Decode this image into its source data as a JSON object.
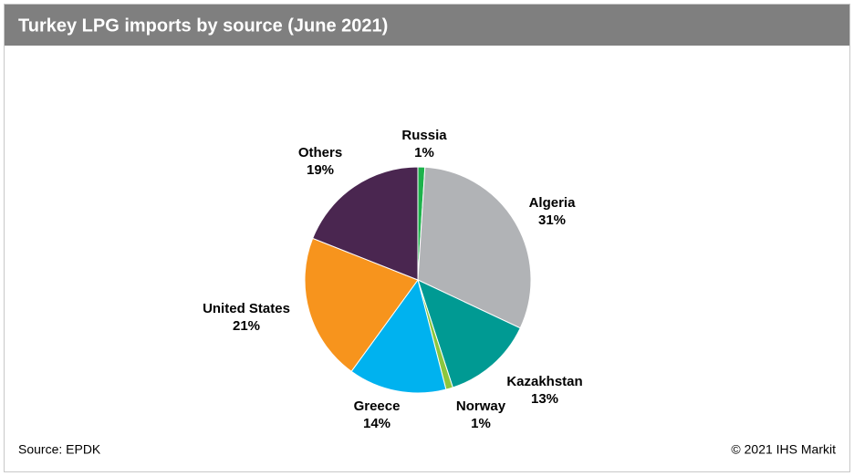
{
  "chart_data": {
    "type": "pie",
    "title": "Turkey LPG imports by source (June 2021)",
    "categories": [
      "Russia",
      "Algeria",
      "Kazakhstan",
      "Norway",
      "Greece",
      "United States",
      "Others"
    ],
    "values": [
      1,
      31,
      13,
      1,
      14,
      21,
      19
    ],
    "value_labels": [
      "1%",
      "31%",
      "13%",
      "1%",
      "14%",
      "21%",
      "19%"
    ],
    "colors": [
      "#1db24b",
      "#b1b3b6",
      "#009a93",
      "#8cc63e",
      "#00b2ef",
      "#f7941d",
      "#4a2650"
    ],
    "source": "Source: EPDK",
    "copyright": "© 2021 IHS Markit"
  }
}
